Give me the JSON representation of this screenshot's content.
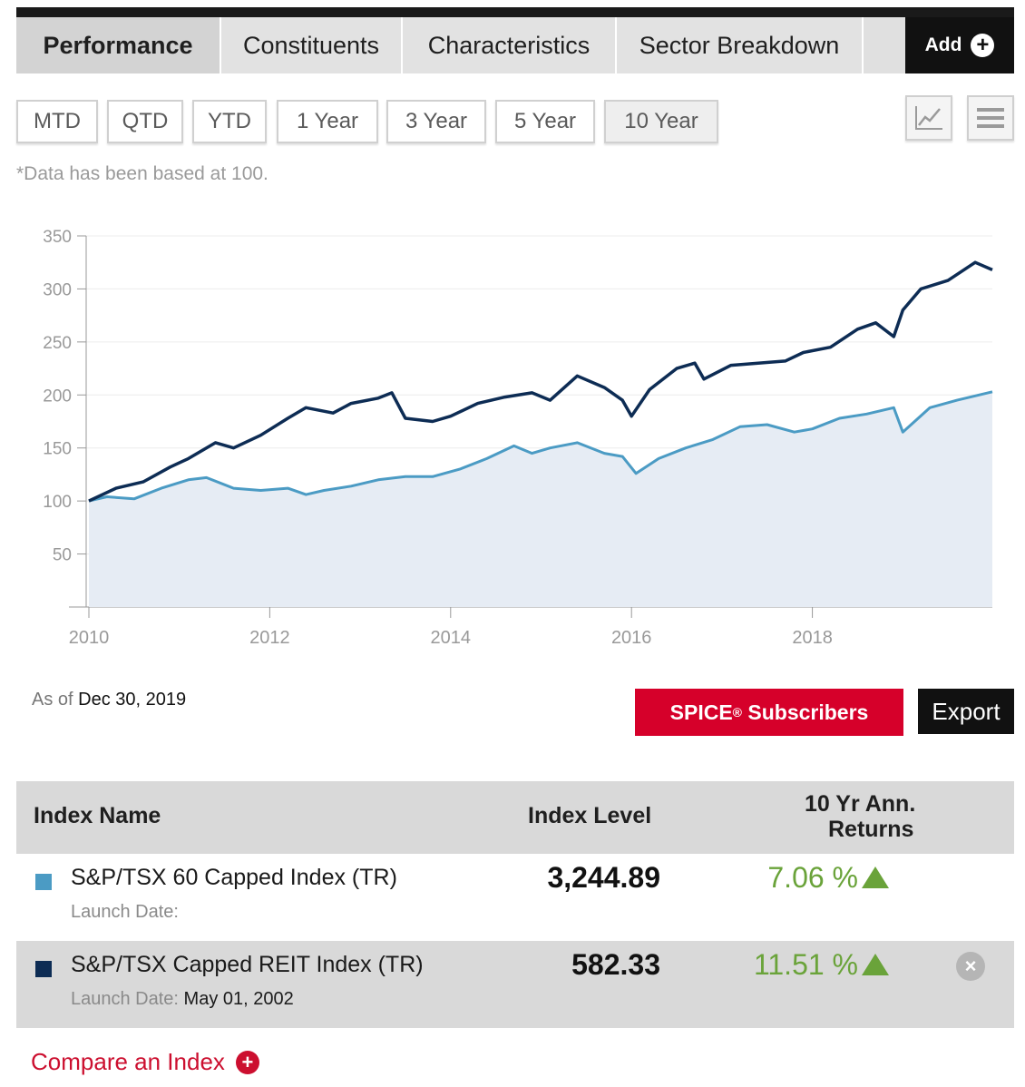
{
  "tabs": [
    {
      "label": "Performance"
    },
    {
      "label": "Constituents"
    },
    {
      "label": "Characteristics"
    },
    {
      "label": "Sector Breakdown"
    }
  ],
  "add_label": "Add",
  "ranges": [
    "MTD",
    "QTD",
    "YTD",
    "1 Year",
    "3 Year",
    "5 Year",
    "10 Year"
  ],
  "active_range": "10 Year",
  "note": "*Data has been based at 100.",
  "chart_data": {
    "type": "line",
    "title": "",
    "xlabel": "",
    "ylabel": "",
    "xlim": [
      2009.97,
      2019.99
    ],
    "ylim": [
      0,
      350
    ],
    "yticks": [
      50,
      100,
      150,
      200,
      250,
      300,
      350
    ],
    "xticks": [
      2010,
      2012,
      2014,
      2016,
      2018
    ],
    "grid": true,
    "series": [
      {
        "name": "S&P/TSX Capped REIT Index (TR)",
        "color": "#0d2c54",
        "x": [
          2010.0,
          2010.3,
          2010.6,
          2010.9,
          2011.1,
          2011.4,
          2011.6,
          2011.9,
          2012.2,
          2012.4,
          2012.7,
          2012.9,
          2013.2,
          2013.35,
          2013.5,
          2013.8,
          2014.0,
          2014.3,
          2014.6,
          2014.9,
          2015.1,
          2015.4,
          2015.7,
          2015.9,
          2016.0,
          2016.2,
          2016.5,
          2016.7,
          2016.8,
          2017.1,
          2017.4,
          2017.7,
          2017.9,
          2018.2,
          2018.5,
          2018.7,
          2018.9,
          2019.0,
          2019.2,
          2019.5,
          2019.8,
          2019.99
        ],
        "values": [
          100,
          112,
          118,
          132,
          140,
          155,
          150,
          162,
          178,
          188,
          183,
          192,
          197,
          202,
          178,
          175,
          180,
          192,
          198,
          202,
          195,
          218,
          207,
          195,
          180,
          205,
          225,
          230,
          215,
          228,
          230,
          232,
          240,
          245,
          262,
          268,
          255,
          280,
          300,
          308,
          325,
          318
        ]
      },
      {
        "name": "S&P/TSX 60 Capped Index (TR)",
        "color": "#4b9bc4",
        "x": [
          2010.0,
          2010.2,
          2010.5,
          2010.8,
          2011.1,
          2011.3,
          2011.6,
          2011.9,
          2012.2,
          2012.4,
          2012.6,
          2012.9,
          2013.2,
          2013.5,
          2013.8,
          2014.1,
          2014.4,
          2014.7,
          2014.9,
          2015.1,
          2015.4,
          2015.7,
          2015.9,
          2016.05,
          2016.3,
          2016.6,
          2016.9,
          2017.2,
          2017.5,
          2017.8,
          2018.0,
          2018.3,
          2018.6,
          2018.9,
          2019.0,
          2019.3,
          2019.6,
          2019.99
        ],
        "values": [
          100,
          104,
          102,
          112,
          120,
          122,
          112,
          110,
          112,
          106,
          110,
          114,
          120,
          123,
          123,
          130,
          140,
          152,
          145,
          150,
          155,
          145,
          142,
          126,
          140,
          150,
          158,
          170,
          172,
          165,
          168,
          178,
          182,
          188,
          165,
          188,
          195,
          203
        ]
      }
    ]
  },
  "as_of_label": "As of",
  "as_of_date": "Dec 30, 2019",
  "spice_label": "SPICE",
  "spice_sup": "®",
  "spice_suffix": " Subscribers",
  "export_label": "Export",
  "table": {
    "col_name": "Index Name",
    "col_level": "Index Level",
    "col_returns_line1": "10 Yr Ann.",
    "col_returns_line2": "Returns",
    "rows": [
      {
        "name": "S&P/TSX 60 Capped Index (TR)",
        "color": "#4b9bc4",
        "launch_label": "Launch Date:",
        "launch_date": "",
        "level": "3,244.89",
        "returns": "7.06 %"
      },
      {
        "name": "S&P/TSX Capped REIT Index (TR)",
        "color": "#0d2c54",
        "launch_label": "Launch Date:",
        "launch_date": "May 01, 2002",
        "level": "582.33",
        "returns": "11.51 %"
      }
    ]
  },
  "compare_label": "Compare an Index",
  "colors": {
    "accent_red": "#d6002a",
    "positive_green": "#6aa33a"
  }
}
